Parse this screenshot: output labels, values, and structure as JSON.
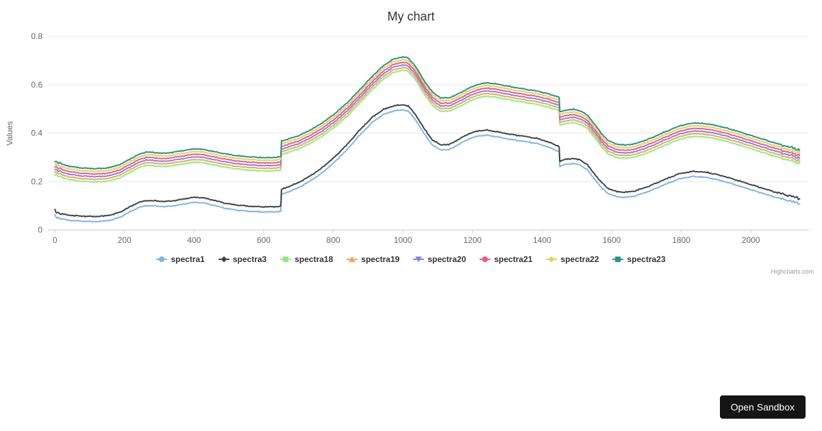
{
  "chart_data": {
    "type": "line",
    "title": "My chart",
    "xlabel": "",
    "ylabel": "Values",
    "xlim": [
      -20,
      2167
    ],
    "ylim": [
      0,
      0.8
    ],
    "x_ticks": [
      0,
      200,
      400,
      600,
      800,
      1000,
      1200,
      1400,
      1600,
      1800,
      2000
    ],
    "y_ticks": [
      0,
      0.2,
      0.4,
      0.6,
      0.8
    ],
    "grid": "horizontal",
    "legend_position": "bottom",
    "axis_line_color": "#ccd6eb",
    "grid_line_color": "#e6e6e6",
    "tick_label_color": "#666666",
    "base_curves_keypoints": {
      "lower": [
        [
          0,
          0.058
        ],
        [
          6,
          0.052
        ],
        [
          14,
          0.047
        ],
        [
          25,
          0.043
        ],
        [
          45,
          0.039
        ],
        [
          75,
          0.036
        ],
        [
          110,
          0.034
        ],
        [
          140,
          0.036
        ],
        [
          165,
          0.042
        ],
        [
          190,
          0.054
        ],
        [
          215,
          0.074
        ],
        [
          240,
          0.092
        ],
        [
          262,
          0.1
        ],
        [
          288,
          0.099
        ],
        [
          315,
          0.096
        ],
        [
          345,
          0.1
        ],
        [
          375,
          0.108
        ],
        [
          402,
          0.114
        ],
        [
          428,
          0.111
        ],
        [
          458,
          0.101
        ],
        [
          490,
          0.089
        ],
        [
          525,
          0.081
        ],
        [
          565,
          0.076
        ],
        [
          605,
          0.074
        ],
        [
          638,
          0.075
        ],
        [
          649,
          0.077
        ],
        [
          651,
          0.146
        ],
        [
          672,
          0.158
        ],
        [
          698,
          0.173
        ],
        [
          728,
          0.197
        ],
        [
          762,
          0.229
        ],
        [
          800,
          0.275
        ],
        [
          840,
          0.332
        ],
        [
          880,
          0.398
        ],
        [
          915,
          0.448
        ],
        [
          945,
          0.477
        ],
        [
          972,
          0.491
        ],
        [
          1000,
          0.496
        ],
        [
          1015,
          0.491
        ],
        [
          1035,
          0.458
        ],
        [
          1060,
          0.4
        ],
        [
          1085,
          0.35
        ],
        [
          1108,
          0.331
        ],
        [
          1132,
          0.331
        ],
        [
          1158,
          0.351
        ],
        [
          1186,
          0.374
        ],
        [
          1215,
          0.388
        ],
        [
          1242,
          0.391
        ],
        [
          1272,
          0.384
        ],
        [
          1308,
          0.374
        ],
        [
          1348,
          0.366
        ],
        [
          1388,
          0.356
        ],
        [
          1420,
          0.341
        ],
        [
          1443,
          0.327
        ],
        [
          1449,
          0.324
        ],
        [
          1451,
          0.262
        ],
        [
          1468,
          0.271
        ],
        [
          1490,
          0.274
        ],
        [
          1510,
          0.268
        ],
        [
          1530,
          0.248
        ],
        [
          1550,
          0.211
        ],
        [
          1570,
          0.176
        ],
        [
          1590,
          0.15
        ],
        [
          1612,
          0.138
        ],
        [
          1638,
          0.134
        ],
        [
          1668,
          0.14
        ],
        [
          1708,
          0.16
        ],
        [
          1752,
          0.187
        ],
        [
          1796,
          0.212
        ],
        [
          1836,
          0.221
        ],
        [
          1876,
          0.216
        ],
        [
          1916,
          0.203
        ],
        [
          1956,
          0.186
        ],
        [
          1996,
          0.168
        ],
        [
          2036,
          0.15
        ],
        [
          2076,
          0.133
        ],
        [
          2106,
          0.122
        ],
        [
          2126,
          0.114
        ],
        [
          2140,
          0.11
        ]
      ],
      "upper": [
        [
          0,
          0.232
        ],
        [
          6,
          0.226
        ],
        [
          14,
          0.22
        ],
        [
          25,
          0.214
        ],
        [
          45,
          0.207
        ],
        [
          75,
          0.201
        ],
        [
          110,
          0.198
        ],
        [
          140,
          0.199
        ],
        [
          165,
          0.205
        ],
        [
          190,
          0.217
        ],
        [
          215,
          0.237
        ],
        [
          240,
          0.256
        ],
        [
          262,
          0.267
        ],
        [
          288,
          0.264
        ],
        [
          315,
          0.261
        ],
        [
          345,
          0.267
        ],
        [
          375,
          0.274
        ],
        [
          402,
          0.28
        ],
        [
          428,
          0.277
        ],
        [
          458,
          0.268
        ],
        [
          490,
          0.259
        ],
        [
          525,
          0.251
        ],
        [
          565,
          0.246
        ],
        [
          605,
          0.243
        ],
        [
          638,
          0.245
        ],
        [
          649,
          0.247
        ],
        [
          651,
          0.312
        ],
        [
          672,
          0.321
        ],
        [
          698,
          0.333
        ],
        [
          728,
          0.353
        ],
        [
          762,
          0.381
        ],
        [
          800,
          0.42
        ],
        [
          840,
          0.47
        ],
        [
          880,
          0.53
        ],
        [
          915,
          0.584
        ],
        [
          945,
          0.624
        ],
        [
          972,
          0.65
        ],
        [
          1000,
          0.66
        ],
        [
          1015,
          0.655
        ],
        [
          1035,
          0.624
        ],
        [
          1060,
          0.564
        ],
        [
          1085,
          0.514
        ],
        [
          1108,
          0.491
        ],
        [
          1132,
          0.49
        ],
        [
          1158,
          0.506
        ],
        [
          1186,
          0.528
        ],
        [
          1215,
          0.546
        ],
        [
          1242,
          0.553
        ],
        [
          1272,
          0.547
        ],
        [
          1308,
          0.537
        ],
        [
          1348,
          0.527
        ],
        [
          1388,
          0.518
        ],
        [
          1420,
          0.506
        ],
        [
          1443,
          0.496
        ],
        [
          1449,
          0.493
        ],
        [
          1451,
          0.432
        ],
        [
          1468,
          0.44
        ],
        [
          1490,
          0.443
        ],
        [
          1510,
          0.437
        ],
        [
          1530,
          0.419
        ],
        [
          1550,
          0.384
        ],
        [
          1570,
          0.344
        ],
        [
          1590,
          0.314
        ],
        [
          1612,
          0.3
        ],
        [
          1638,
          0.295
        ],
        [
          1668,
          0.301
        ],
        [
          1708,
          0.321
        ],
        [
          1752,
          0.349
        ],
        [
          1796,
          0.375
        ],
        [
          1836,
          0.387
        ],
        [
          1876,
          0.383
        ],
        [
          1916,
          0.371
        ],
        [
          1956,
          0.355
        ],
        [
          1996,
          0.337
        ],
        [
          2036,
          0.319
        ],
        [
          2076,
          0.301
        ],
        [
          2106,
          0.289
        ],
        [
          2126,
          0.281
        ],
        [
          2140,
          0.276
        ]
      ]
    },
    "series": [
      {
        "name": "spectra1",
        "color": "#7cb5ec",
        "marker": "circle",
        "base": "lower",
        "y_offset": 0
      },
      {
        "name": "spectra3",
        "color": "#434348",
        "marker": "diamond",
        "base": "lower",
        "y_offset": 0.021
      },
      {
        "name": "spectra18",
        "color": "#90ed7d",
        "marker": "square",
        "base": "upper",
        "y_offset": 0
      },
      {
        "name": "spectra19",
        "color": "#f7a35c",
        "marker": "triangle",
        "base": "upper",
        "y_offset": 0.011
      },
      {
        "name": "spectra20",
        "color": "#8085e9",
        "marker": "triangle-down",
        "base": "upper",
        "y_offset": 0.022
      },
      {
        "name": "spectra21",
        "color": "#f15c80",
        "marker": "circle",
        "base": "upper",
        "y_offset": 0.033
      },
      {
        "name": "spectra22",
        "color": "#e4d354",
        "marker": "diamond",
        "base": "upper",
        "y_offset": 0.044
      },
      {
        "name": "spectra23",
        "color": "#2b908f",
        "marker": "square",
        "base": "upper",
        "y_offset": 0.055
      }
    ]
  },
  "credits": "Highcharts.com",
  "sandbox_button": {
    "label": "Open Sandbox"
  }
}
